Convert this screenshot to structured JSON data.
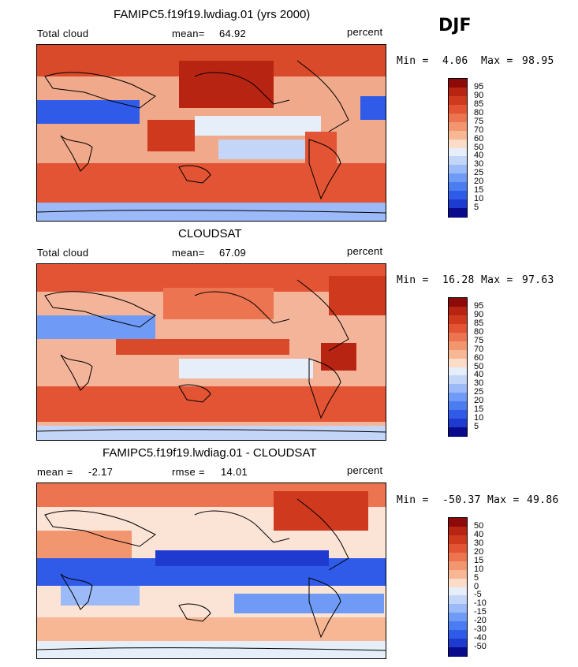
{
  "season": "DJF",
  "units": "percent",
  "variable": "Total cloud",
  "colors": {
    "abs_scale": [
      "#0a0a8c",
      "#1e3acf",
      "#2f5be8",
      "#4b7cf0",
      "#6f9af5",
      "#9bbaf7",
      "#c3d6f8",
      "#e6eef9",
      "#fbdcc8",
      "#f7b795",
      "#f29670",
      "#ec7450",
      "#e25433",
      "#cf3a1f",
      "#b82412",
      "#8c0a0a"
    ],
    "diff_scale": [
      "#0a0a8c",
      "#1e3acf",
      "#2f5be8",
      "#4b7cf0",
      "#6f9af5",
      "#9bbaf7",
      "#c3d6f8",
      "#e6eef9",
      "#fbdcc8",
      "#f7b795",
      "#f29670",
      "#ec7450",
      "#e25433",
      "#cf3a1f",
      "#b82412",
      "#8c0a0a"
    ]
  },
  "panels": [
    {
      "id": "model",
      "title": "FAMIPC5.f19f19.lwdiag.01 (yrs 2000)",
      "left_label": "Total cloud",
      "mean_label": "mean=",
      "mean_value": "64.92",
      "units": "percent",
      "min_label": "Min =",
      "min_value": "4.06",
      "max_label": "Max =",
      "max_value": "98.95",
      "colorbar_labels": [
        "95",
        "90",
        "85",
        "80",
        "75",
        "70",
        "60",
        "50",
        "40",
        "30",
        "25",
        "20",
        "15",
        "10",
        "5"
      ]
    },
    {
      "id": "obs",
      "title": "CLOUDSAT",
      "left_label": "Total cloud",
      "mean_label": "mean=",
      "mean_value": "67.09",
      "units": "percent",
      "min_label": "Min =",
      "min_value": "16.28",
      "max_label": "Max =",
      "max_value": "97.63",
      "colorbar_labels": [
        "95",
        "90",
        "85",
        "80",
        "75",
        "70",
        "60",
        "50",
        "40",
        "30",
        "25",
        "20",
        "15",
        "10",
        "5"
      ]
    },
    {
      "id": "diff",
      "title": "FAMIPC5.f19f19.lwdiag.01 - CLOUDSAT",
      "left_label": "mean =",
      "left_value": "-2.17",
      "mean_label": "rmse =",
      "mean_value": "14.01",
      "units": "percent",
      "min_label": "Min =",
      "min_value": "-50.37",
      "max_label": "Max =",
      "max_value": "49.86",
      "colorbar_labels": [
        "50",
        "40",
        "30",
        "20",
        "15",
        "10",
        "5",
        "0",
        "-5",
        "-10",
        "-15",
        "-20",
        "-30",
        "-40",
        "-50"
      ]
    }
  ]
}
